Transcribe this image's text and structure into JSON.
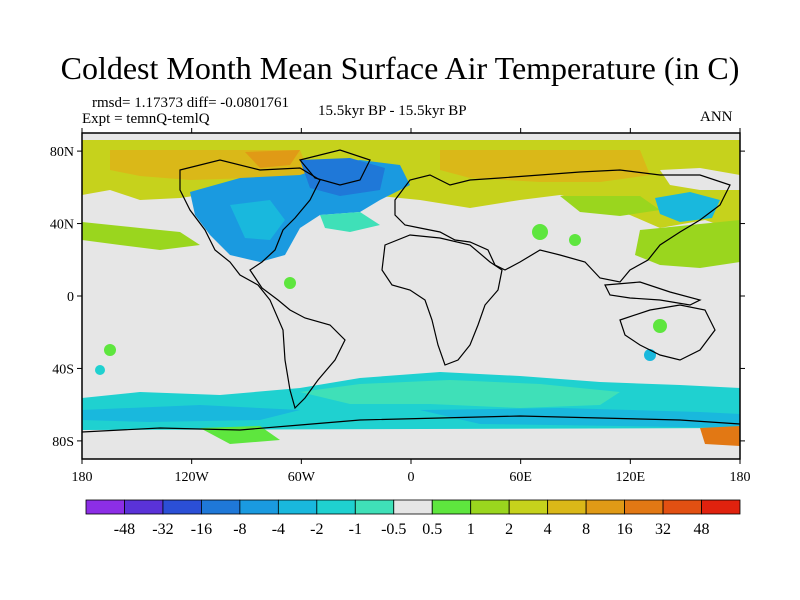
{
  "title": "Coldest Month Mean Surface Air Temperature (in C)",
  "stats_line": "rmsd= 1.17373 diff= -0.0801761",
  "expt_line": "Expt = temnQ-temlQ",
  "period_line": "15.5kyr BP - 15.5kyr BP",
  "season": "ANN",
  "lat_labels": [
    "80N",
    "40N",
    "0",
    "40S",
    "80S"
  ],
  "lat_values": [
    80,
    40,
    0,
    -40,
    -80
  ],
  "lon_labels": [
    "180",
    "120W",
    "60W",
    "0",
    "60E",
    "120E",
    "180"
  ],
  "lon_values": [
    -180,
    -120,
    -60,
    0,
    60,
    120,
    180
  ],
  "legend": {
    "colors": [
      "#8c2ee6",
      "#5a32d8",
      "#2b4fd6",
      "#1f78d8",
      "#1a9ae0",
      "#19b8dd",
      "#1fd1d0",
      "#3fe0b8",
      "#e6e6e6",
      "#5ee63e",
      "#9ad61e",
      "#c6d21c",
      "#dab818",
      "#e09a16",
      "#e27814",
      "#e25012",
      "#e0220e"
    ],
    "labels": [
      "-48",
      "-32",
      "-16",
      "-8",
      "-4",
      "-2",
      "-1",
      "-0.5",
      "0.5",
      "1",
      "2",
      "4",
      "8",
      "16",
      "32",
      "48"
    ]
  }
}
